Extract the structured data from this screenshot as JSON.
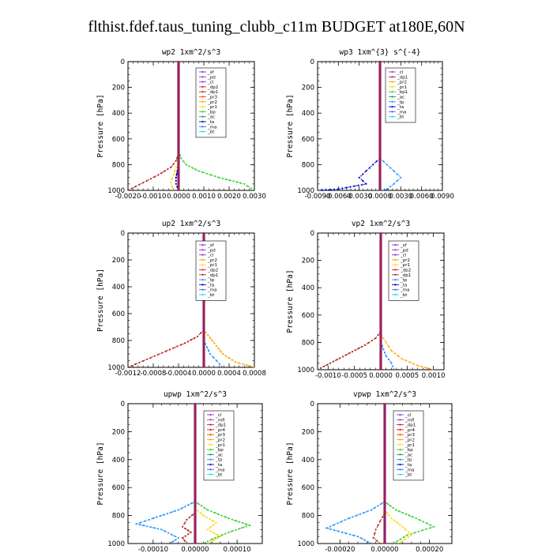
{
  "figure": {
    "title": "flthist.fdef.taus_tuning_clubb_c11m  BUDGET at180E,60N"
  },
  "colors": {
    "_sf": "#9932cc",
    "_pd": "#9932cc",
    "_cl": "#9932cc",
    "_mfl": "#9932cc",
    "_dp2": "#e8173a",
    "_dp1": "#b22222",
    "_pr4": "#dc143c",
    "_pr3": "#ff4500",
    "_pr2": "#ffa500",
    "_pr1": "#ffd700",
    "_bp": "#32cd32",
    "_ac": "#2e8b57",
    "_tp": "#1e90ff",
    "_ta": "#0000cd",
    "_ma": "#4169e1",
    "_bt": "#00e5ee"
  },
  "chart_data": [
    {
      "type": "line",
      "title": "wp2  1xm^2/s^3",
      "ylabel": "Pressure [hPa]",
      "xlim": [
        -0.002,
        0.003
      ],
      "ylim": [
        1000,
        0
      ],
      "xticks": [
        -0.002,
        -0.001,
        0.0,
        0.001,
        0.002,
        0.003
      ],
      "xtick_labels": [
        "-0.0020",
        "-0.0010",
        "0.0000",
        "0.0010",
        "0.0020",
        "0.0030"
      ],
      "yticks": [
        0,
        200,
        400,
        600,
        800,
        1000
      ],
      "ytick_labels": [
        "0",
        "200",
        "400",
        "600",
        "800",
        "1000"
      ],
      "legend": [
        "_sf",
        "_pd",
        "_cl",
        "_dp2",
        "_dp1",
        "_pr3",
        "_pr2",
        "_pr1",
        "_bp",
        "_ac",
        "_ta",
        "_ma",
        "_bt"
      ],
      "series": [
        {
          "name": "_bp",
          "x": [
            0,
            0,
            0.0001,
            0.0003,
            0.0008,
            0.0016,
            0.0026,
            0.003
          ],
          "y": [
            0,
            700,
            750,
            800,
            850,
            900,
            950,
            1000
          ]
        },
        {
          "name": "_dp1",
          "x": [
            0,
            0,
            -0.0001,
            -0.0003,
            -0.0008,
            -0.0014,
            -0.002
          ],
          "y": [
            0,
            720,
            770,
            820,
            880,
            940,
            1000
          ]
        },
        {
          "name": "_pr1",
          "x": [
            0,
            0,
            -0.0001,
            -0.0002,
            -0.0003,
            -0.0002
          ],
          "y": [
            0,
            780,
            820,
            880,
            940,
            1000
          ]
        },
        {
          "name": "_ta",
          "x": [
            0,
            0,
            -5e-05,
            -0.0001,
            -0.0001,
            0
          ],
          "y": [
            0,
            800,
            850,
            900,
            950,
            1000
          ]
        },
        {
          "name": "_pd",
          "x": [
            0,
            0
          ],
          "y": [
            0,
            1000
          ]
        }
      ]
    },
    {
      "type": "line",
      "title": "wp3  1xm^{3} s^{-4}",
      "ylabel": "Pressure [hPa]",
      "xlim": [
        -0.009,
        0.009
      ],
      "ylim": [
        1000,
        0
      ],
      "xticks": [
        -0.009,
        -0.006,
        -0.003,
        0.0,
        0.003,
        0.006,
        0.009
      ],
      "xtick_labels": [
        "-0.0090",
        "-0.0060",
        "-0.0030",
        "0.0000",
        "0.0030",
        "0.0060",
        "0.0090"
      ],
      "yticks": [
        0,
        200,
        400,
        600,
        800,
        1000
      ],
      "ytick_labels": [
        "0",
        "200",
        "400",
        "600",
        "800",
        "1000"
      ],
      "legend": [
        "_cl",
        "_dp1",
        "_pr2",
        "_pr1",
        "_bp1",
        "_ac",
        "_tp",
        "_ta",
        "_ma",
        "_bt"
      ],
      "series": [
        {
          "name": "_ta",
          "x": [
            0,
            0,
            -0.001,
            -0.002,
            -0.003,
            -0.002,
            -0.006,
            -0.009
          ],
          "y": [
            0,
            750,
            800,
            850,
            900,
            950,
            990,
            1000
          ]
        },
        {
          "name": "_tp",
          "x": [
            0,
            0,
            0.001,
            0.002,
            0.003,
            0.002,
            0.001,
            0.0005
          ],
          "y": [
            0,
            750,
            800,
            850,
            900,
            950,
            990,
            1000
          ]
        },
        {
          "name": "_dp1",
          "x": [
            0,
            0
          ],
          "y": [
            0,
            1000
          ]
        }
      ]
    },
    {
      "type": "line",
      "title": "up2  1xm^2/s^3",
      "ylabel": "Pressure [hPa]",
      "xlim": [
        -0.0012,
        0.0008
      ],
      "ylim": [
        1000,
        0
      ],
      "xticks": [
        -0.0012,
        -0.0008,
        -0.0004,
        0.0,
        0.0004,
        0.0008
      ],
      "xtick_labels": [
        "-0.0012",
        "-0.0008",
        "-0.0004",
        "0.0000",
        "0.0004",
        "0.0008"
      ],
      "yticks": [
        0,
        200,
        400,
        600,
        800,
        1000
      ],
      "ytick_labels": [
        "0",
        "200",
        "400",
        "600",
        "800",
        "1000"
      ],
      "legend": [
        "_sf",
        "_pd",
        "_cl",
        "_pr2",
        "_pr1",
        "_dp2",
        "_dp1",
        "_tp",
        "_ta",
        "_ma",
        "_bt"
      ],
      "series": [
        {
          "name": "_dp1",
          "x": [
            0,
            0,
            -0.0001,
            -0.0003,
            -0.0006,
            -0.0009,
            -0.0012
          ],
          "y": [
            0,
            720,
            770,
            820,
            880,
            940,
            1000
          ]
        },
        {
          "name": "_pr2",
          "x": [
            0,
            0,
            0.0001,
            0.0002,
            0.0003,
            0.0005,
            0.0008
          ],
          "y": [
            0,
            720,
            780,
            840,
            900,
            960,
            1000
          ]
        },
        {
          "name": "_tp",
          "x": [
            0,
            0,
            5e-05,
            0.0001,
            0.0002,
            0.0003
          ],
          "y": [
            0,
            800,
            850,
            900,
            950,
            1000
          ]
        },
        {
          "name": "_pd",
          "x": [
            0,
            0
          ],
          "y": [
            0,
            1000
          ]
        }
      ]
    },
    {
      "type": "line",
      "title": "vp2  1xm^2/s^3",
      "ylabel": "Pressure [hPa]",
      "xlim": [
        -0.0012,
        0.0012
      ],
      "ylim": [
        1000,
        0
      ],
      "xticks": [
        -0.001,
        -0.0005,
        0.0,
        0.0005,
        0.001
      ],
      "xtick_labels": [
        "-0.0010",
        "-0.0005",
        "0.0000",
        "0.0005",
        "0.0010"
      ],
      "yticks": [
        0,
        200,
        400,
        600,
        800,
        1000
      ],
      "ytick_labels": [
        "0",
        "200",
        "400",
        "600",
        "800",
        "1000"
      ],
      "legend": [
        "_sf",
        "_pd",
        "_cl",
        "_pr2",
        "_pr1",
        "_dp2",
        "_dp1",
        "_tp",
        "_ta",
        "_ma",
        "_bt"
      ],
      "series": [
        {
          "name": "_dp1",
          "x": [
            0,
            0,
            -0.0001,
            -0.0003,
            -0.0006,
            -0.0009,
            -0.0012
          ],
          "y": [
            0,
            720,
            770,
            820,
            880,
            940,
            1000
          ]
        },
        {
          "name": "_pr2",
          "x": [
            0,
            0,
            0.0001,
            0.0002,
            0.0004,
            0.0007,
            0.001
          ],
          "y": [
            0,
            740,
            800,
            860,
            920,
            970,
            1000
          ]
        },
        {
          "name": "_tp",
          "x": [
            0,
            0,
            5e-05,
            0.0001,
            0.0002,
            0.00025
          ],
          "y": [
            0,
            800,
            850,
            900,
            950,
            1000
          ]
        },
        {
          "name": "_pd",
          "x": [
            0,
            0
          ],
          "y": [
            0,
            1000
          ]
        }
      ]
    },
    {
      "type": "line",
      "title": "upwp  1xm^2/s^3",
      "ylabel": "Pressure [hPa]",
      "xlim": [
        -0.00016,
        0.00016
      ],
      "ylim": [
        1000,
        0
      ],
      "xticks": [
        -0.0001,
        0.0,
        0.0001
      ],
      "xtick_labels": [
        "-0.00010",
        "0.00000",
        "0.00010"
      ],
      "yticks": [
        0,
        200,
        400,
        600,
        800,
        1000
      ],
      "ytick_labels": [
        "0",
        "200",
        "400",
        "600",
        "800",
        "1000"
      ],
      "legend": [
        "_cl",
        "_mfl",
        "_dp1",
        "_pr4",
        "_pr3",
        "_pr2",
        "_pr1",
        "_bp",
        "_ac",
        "_tp",
        "_ta",
        "_ma",
        "_bt"
      ],
      "series": [
        {
          "name": "_tp",
          "x": [
            0,
            0,
            -4e-05,
            -0.0001,
            -0.00014,
            -8e-05,
            -4e-05,
            -6e-05
          ],
          "y": [
            0,
            700,
            760,
            820,
            860,
            900,
            960,
            1000
          ]
        },
        {
          "name": "_bp",
          "x": [
            0,
            0,
            3e-05,
            8e-05,
            0.00013,
            8e-05,
            4e-05,
            2e-05
          ],
          "y": [
            0,
            700,
            760,
            820,
            870,
            920,
            970,
            1000
          ]
        },
        {
          "name": "_pr1",
          "x": [
            0,
            0,
            2e-05,
            5e-05,
            3e-05,
            6e-05,
            3e-05
          ],
          "y": [
            0,
            750,
            800,
            850,
            900,
            950,
            1000
          ]
        },
        {
          "name": "_dp1",
          "x": [
            0,
            0,
            -2e-05,
            -3e-05,
            -1e-05,
            -3e-05,
            -2e-05
          ],
          "y": [
            0,
            780,
            830,
            880,
            920,
            960,
            1000
          ]
        },
        {
          "name": "_cl",
          "x": [
            0,
            0
          ],
          "y": [
            0,
            1000
          ]
        }
      ]
    },
    {
      "type": "line",
      "title": "vpwp  1xm^2/s^3",
      "ylabel": "Pressure [hPa]",
      "xlim": [
        -0.0003,
        0.0003
      ],
      "ylim": [
        1000,
        0
      ],
      "xticks": [
        -0.0002,
        0.0,
        0.0002
      ],
      "xtick_labels": [
        "-0.00020",
        "0.00000",
        "0.00020"
      ],
      "yticks": [
        0,
        200,
        400,
        600,
        800,
        1000
      ],
      "ytick_labels": [
        "0",
        "200",
        "400",
        "600",
        "800",
        "1000"
      ],
      "legend": [
        "_cl",
        "_mfl",
        "_dp1",
        "_pr4",
        "_pr3",
        "_pr2",
        "_pr1",
        "_bp",
        "_ac",
        "_tp",
        "_ta",
        "_ma",
        "_bt"
      ],
      "series": [
        {
          "name": "_tp",
          "x": [
            0,
            0,
            -6e-05,
            -0.00016,
            -0.00026,
            -0.00012,
            -6e-05
          ],
          "y": [
            0,
            700,
            760,
            820,
            890,
            950,
            1000
          ]
        },
        {
          "name": "_bp",
          "x": [
            0,
            0,
            5e-05,
            0.00014,
            0.00022,
            0.0001,
            4e-05
          ],
          "y": [
            0,
            700,
            760,
            820,
            880,
            940,
            1000
          ]
        },
        {
          "name": "_pr1",
          "x": [
            0,
            0,
            3e-05,
            8e-05,
            0.00012,
            6e-05
          ],
          "y": [
            0,
            760,
            820,
            880,
            940,
            1000
          ]
        },
        {
          "name": "_dp1",
          "x": [
            0,
            0,
            -2e-05,
            -4e-05,
            -5e-05,
            -2e-05
          ],
          "y": [
            0,
            780,
            840,
            900,
            960,
            1000
          ]
        },
        {
          "name": "_cl",
          "x": [
            0,
            0
          ],
          "y": [
            0,
            1000
          ]
        }
      ]
    }
  ]
}
